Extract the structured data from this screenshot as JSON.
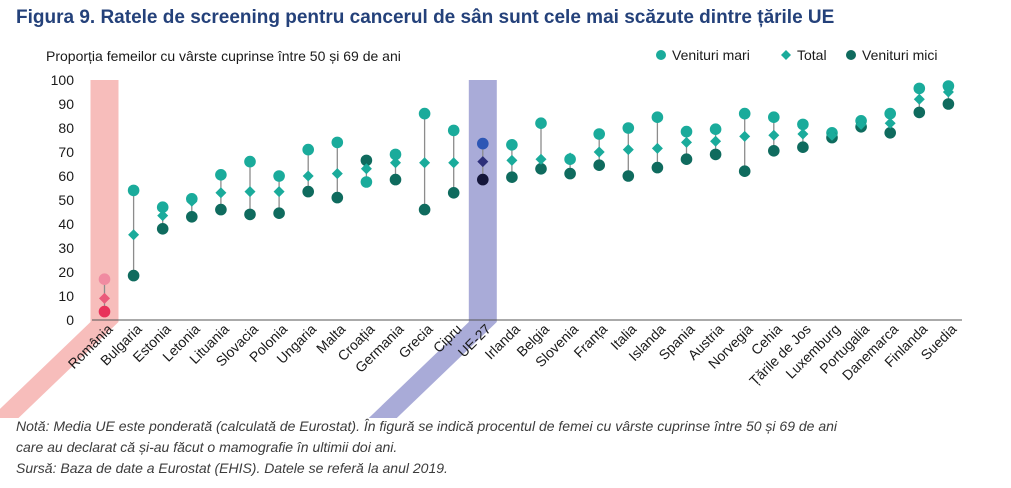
{
  "figure_title": "Figura 9. Ratele de screening pentru cancerul de sân sunt cele mai scăzute dintre țările UE",
  "notes": {
    "line1": "Notă: Media UE este ponderată (calculată de Eurostat). În figură se indică procentul de femei cu vârste cuprinse între 50 și 69 de ani",
    "line2": "care au declarat că și-au făcut o mamografie în ultimii doi ani.",
    "source": "Sursă: Baza de date a Eurostat (EHIS). Datele se referă la anul 2019."
  },
  "chart_data": {
    "type": "scatter",
    "title": "Figura 9. Ratele de screening pentru cancerul de sân sunt cele mai scăzute dintre țările UE",
    "ylabel": "Proporția femeilor cu vârste cuprinse între 50 și 69 de ani",
    "xlabel": "",
    "ylim": [
      0,
      100
    ],
    "yticks": [
      0,
      10,
      20,
      30,
      40,
      50,
      60,
      70,
      80,
      90,
      100
    ],
    "grid": false,
    "legend_position": "top-right",
    "categories": [
      "România",
      "Bulgaria",
      "Estonia",
      "Letonia",
      "Lituania",
      "Slovacia",
      "Polonia",
      "Ungaria",
      "Malta",
      "Croația",
      "Germania",
      "Grecia",
      "Cipru",
      "UE-27",
      "Irlanda",
      "Belgia",
      "Slovenia",
      "Franța",
      "Italia",
      "Islanda",
      "Spania",
      "Austria",
      "Norvegia",
      "Cehia",
      "Țările de Jos",
      "Luxemburg",
      "Portugalia",
      "Danemarca",
      "Finlanda",
      "Suedia"
    ],
    "highlighted": [
      "România",
      "UE-27"
    ],
    "series": [
      {
        "name": "Venituri mari",
        "marker": "circle",
        "color": "#1aab9b",
        "values": [
          17,
          54,
          47,
          50.5,
          60.5,
          66,
          60,
          71,
          74,
          57.5,
          69,
          86,
          79,
          73.5,
          73,
          82,
          67,
          77.5,
          80,
          84.5,
          78.5,
          79.5,
          86,
          84.5,
          81.5,
          78,
          83,
          86,
          96.5,
          97.5
        ]
      },
      {
        "name": "Total",
        "marker": "diamond",
        "color": "#1aab9b",
        "values": [
          9,
          35.5,
          43.5,
          49.5,
          53,
          53.5,
          53.5,
          60,
          61,
          63,
          65.5,
          65.5,
          65.5,
          66,
          66.5,
          67,
          67.5,
          70,
          71,
          71.5,
          74,
          74.5,
          76.5,
          77,
          77.5,
          77,
          81.5,
          82,
          92,
          95
        ]
      },
      {
        "name": "Venituri mici",
        "marker": "circle",
        "color": "#0f6b5e",
        "values": [
          3.5,
          18.5,
          38,
          43,
          46,
          44,
          44.5,
          53.5,
          51,
          66.5,
          58.5,
          46,
          53,
          58.5,
          59.5,
          63,
          61,
          64.5,
          60,
          63.5,
          67,
          69,
          62,
          70.5,
          72,
          76,
          80.5,
          78,
          86.5,
          90
        ]
      }
    ],
    "special_colors": {
      "România": {
        "Venituri mari": "#f08ba1",
        "Total": "#ea5a7a",
        "Venituri mici": "#e8325a"
      },
      "UE-27": {
        "Venituri mari": "#2d57b5",
        "Total": "#2d2f7a",
        "Venituri mici": "#14163a"
      }
    },
    "highlight_colors": {
      "România": "#f7bdbb",
      "UE-27": "#a9abd8"
    },
    "stem_color": "#8c8c8c",
    "axis_color": "#555555",
    "label_color": "#1a1a1a"
  }
}
